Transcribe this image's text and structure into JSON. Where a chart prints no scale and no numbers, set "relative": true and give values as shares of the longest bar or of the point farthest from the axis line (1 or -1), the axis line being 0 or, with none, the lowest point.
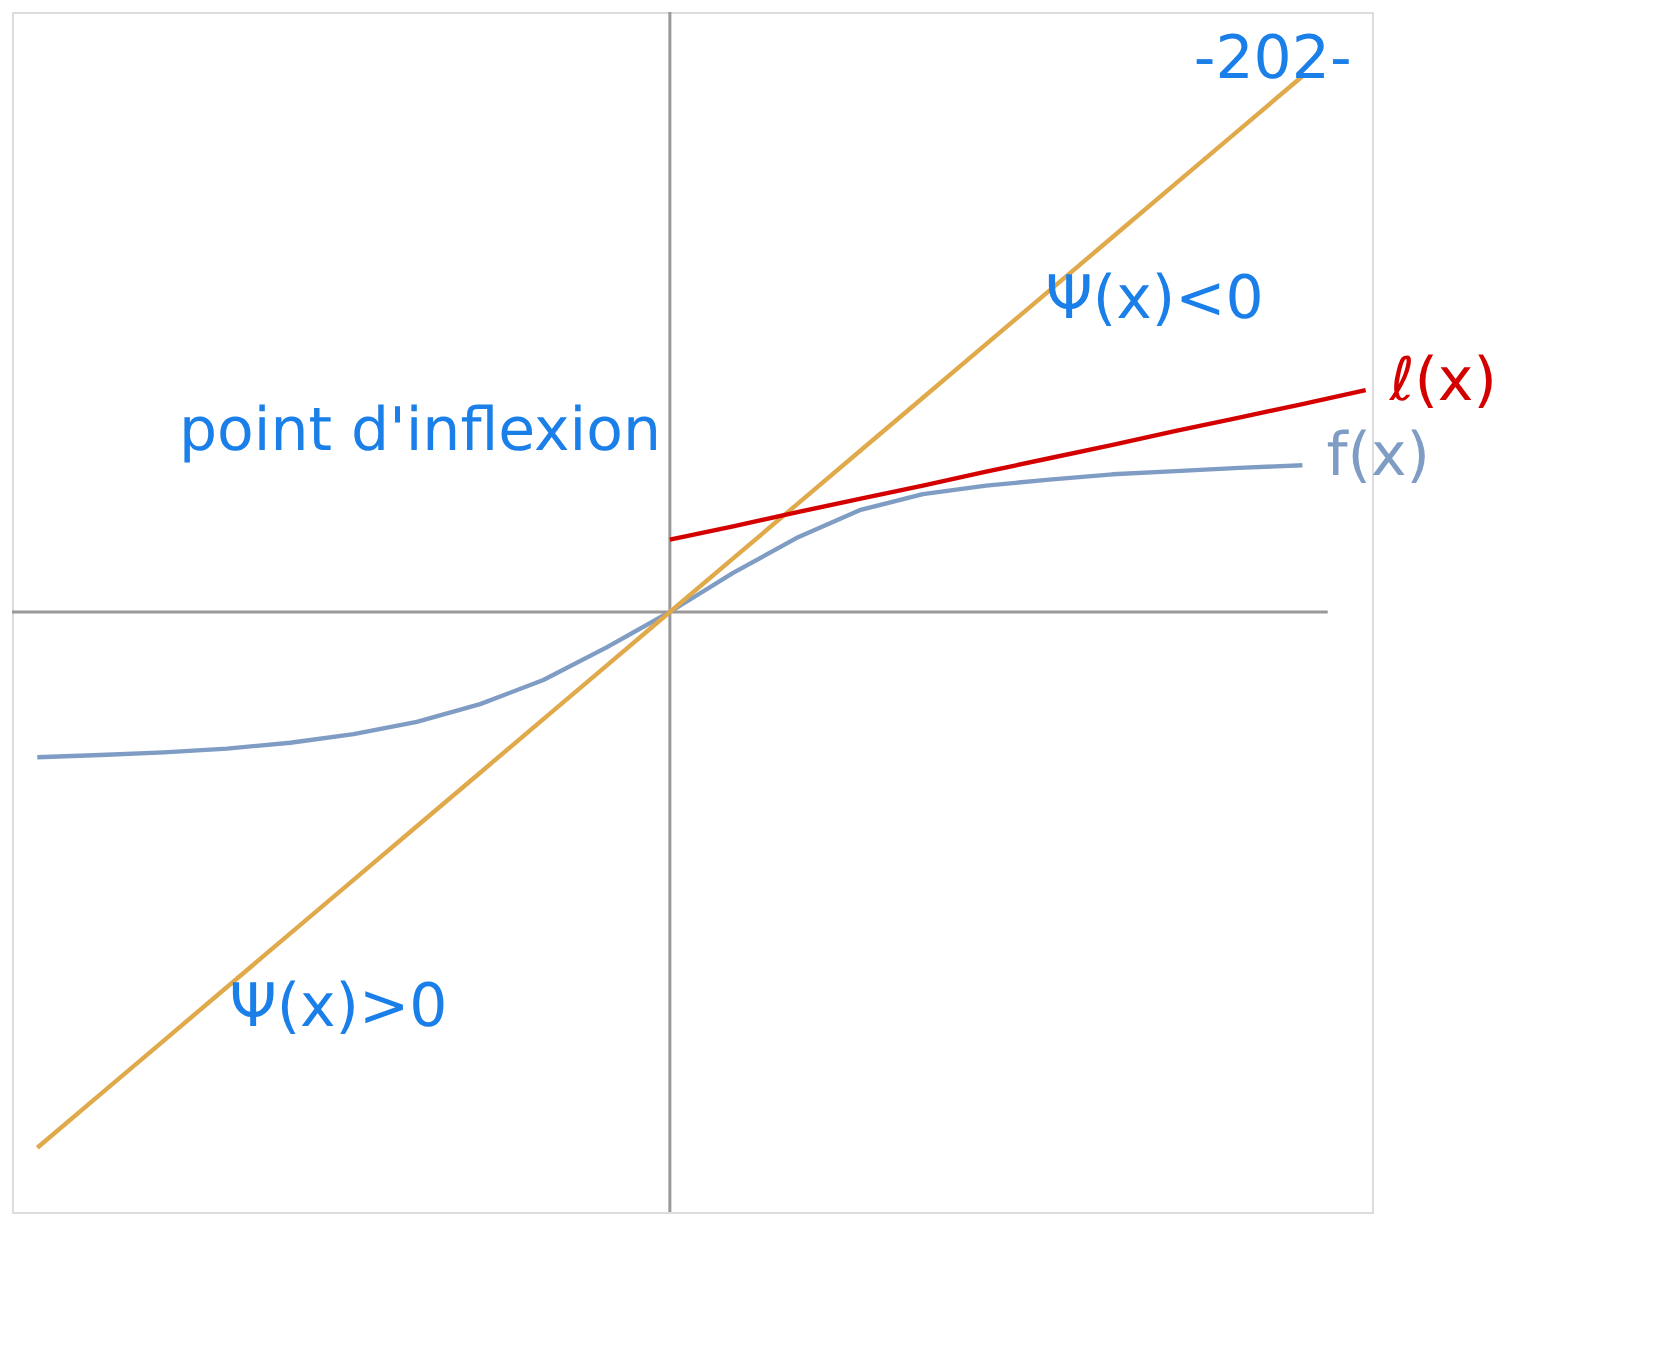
{
  "chart_data": {
    "type": "line",
    "relative": true,
    "tick_labels": false,
    "grid": false,
    "categories": [
      null,
      null,
      null,
      null,
      null,
      null,
      null,
      null,
      null,
      null,
      null,
      null,
      null,
      null,
      null,
      null,
      null,
      null,
      null,
      null,
      null,
      null
    ],
    "series": [
      {
        "name": "f(x)",
        "color": "#7f9cc4",
        "values": [
          -0.271,
          -0.267,
          -0.262,
          -0.255,
          -0.244,
          -0.228,
          -0.205,
          -0.172,
          -0.127,
          -0.066,
          0,
          0.073,
          0.138,
          0.19,
          0.22,
          0.236,
          0.247,
          0.257,
          0.263,
          0.269,
          0.274,
          null
        ]
      },
      {
        "color": "#e0a94a",
        "values": [
          -1,
          -0.9,
          -0.8,
          -0.7,
          -0.6,
          -0.5,
          -0.4,
          -0.3,
          -0.2,
          -0.1,
          0,
          0.1,
          0.2,
          0.3,
          0.4,
          0.5,
          0.6,
          0.7,
          0.8,
          0.9,
          1,
          null
        ]
      },
      {
        "name": "ℓ(x)",
        "color": "#d40000",
        "values": [
          null,
          null,
          null,
          null,
          null,
          null,
          null,
          null,
          null,
          null,
          0.135,
          0.16,
          0.186,
          0.211,
          0.236,
          0.262,
          0.287,
          0.312,
          0.338,
          0.363,
          0.388,
          0.414
        ]
      }
    ],
    "annotations": [
      "point d'inflexion",
      "Ψ(x)<0",
      "Ψ(x)>0",
      "-202-"
    ]
  }
}
